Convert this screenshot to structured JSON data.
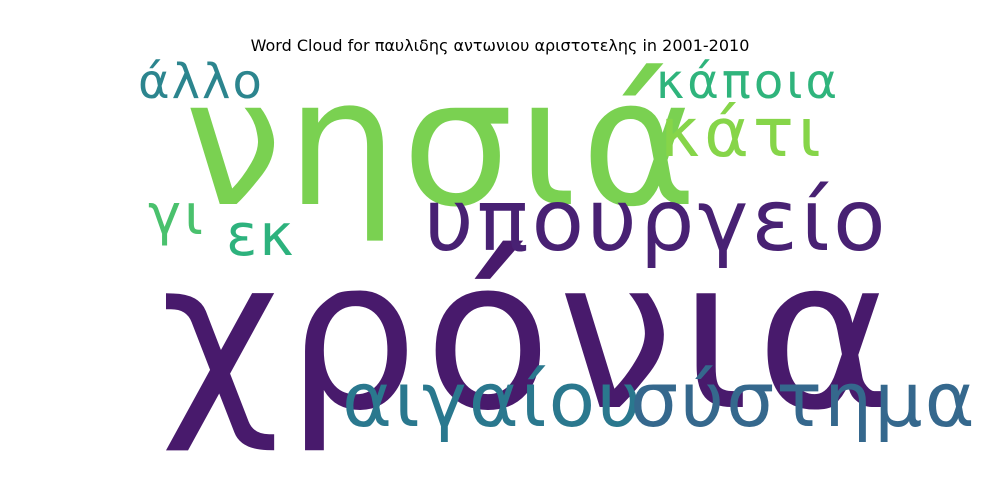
{
  "title": "Word Cloud for παυλιδης αντωνιου αριστοτελης in 2001-2010",
  "words": [
    {
      "text": "χρόνια",
      "color": "#481a6c"
    },
    {
      "text": "νησιά",
      "color": "#7ad151"
    },
    {
      "text": "υπουργείο",
      "color": "#482173"
    },
    {
      "text": "αιγαίου",
      "color": "#2a788e"
    },
    {
      "text": "σύστημα",
      "color": "#35688d"
    },
    {
      "text": "κάτι",
      "color": "#86d549"
    },
    {
      "text": "κάποια",
      "color": "#2fb47c"
    },
    {
      "text": "άλλο",
      "color": "#2c858e"
    },
    {
      "text": "γι",
      "color": "#4ac16d"
    },
    {
      "text": "εκ",
      "color": "#2db27d"
    }
  ]
}
